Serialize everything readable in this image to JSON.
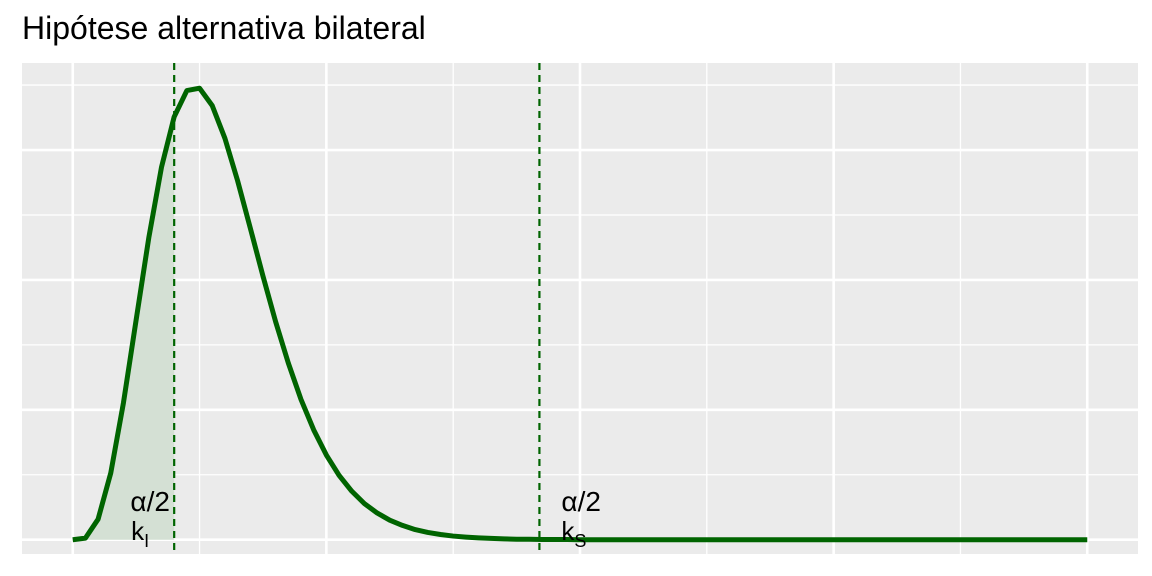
{
  "chart_data": {
    "type": "area",
    "title": "Hipótese alternativa bilateral",
    "xlabel": "",
    "ylabel": "",
    "distribution_note": "chi-square density",
    "x": [
      0,
      0.25,
      0.5,
      0.75,
      1,
      1.25,
      1.5,
      1.75,
      2,
      2.25,
      2.5,
      2.75,
      3,
      3.25,
      3.5,
      3.75,
      4,
      4.25,
      4.5,
      4.75,
      5,
      5.25,
      5.5,
      5.75,
      6,
      6.25,
      6.5,
      6.75,
      7,
      7.25,
      7.5,
      7.75,
      8,
      8.25,
      8.5,
      8.75,
      9,
      9.25,
      9.5,
      9.75,
      10,
      10.5,
      11,
      11.5,
      12,
      12.5,
      13,
      13.5,
      14,
      14.5,
      15,
      15.5,
      16,
      16.5,
      17,
      17.5,
      18,
      18.5,
      19,
      19.5,
      20
    ],
    "series": [
      {
        "values": [
          0,
          0.0006,
          0.0079,
          0.0257,
          0.0527,
          0.0846,
          0.1163,
          0.1434,
          0.1628,
          0.1729,
          0.1738,
          0.1671,
          0.1545,
          0.1382,
          0.12,
          0.1015,
          0.0839,
          0.068,
          0.054,
          0.0423,
          0.0326,
          0.0248,
          0.0187,
          0.0139,
          0.0103,
          0.0075,
          0.0055,
          0.0039,
          0.0028,
          0.002,
          0.0014,
          0.001,
          0.0007,
          0.0005,
          0.0003,
          0.0002,
          0.0002,
          0.0001,
          0.0001,
          0.0001,
          0,
          0,
          0,
          0,
          0,
          0,
          0,
          0,
          0,
          0,
          0,
          0,
          0,
          0,
          0,
          0,
          0,
          0,
          0,
          0,
          0
        ]
      }
    ],
    "xlim": [
      -1,
      21
    ],
    "ylim": [
      -0.0055,
      0.1835
    ],
    "x_breaks_major": [
      0,
      5,
      10,
      15,
      20
    ],
    "x_breaks_minor": [
      2.5,
      7.5,
      12.5,
      17.5
    ],
    "y_breaks_major": [
      0,
      0.05,
      0.1,
      0.15
    ],
    "y_breaks_minor": [
      0.025,
      0.075,
      0.125,
      0.175
    ],
    "tick_labels_visible": false,
    "critical_values": [
      {
        "name": "k_I",
        "x": 2.0,
        "label_main": "k",
        "label_sub": "I",
        "tail_label": "α/2"
      },
      {
        "name": "k_S",
        "x": 9.2,
        "label_main": "k",
        "label_sub": "S",
        "tail_label": "α/2"
      }
    ],
    "grid": true,
    "colors": {
      "curve": "#006400",
      "tail_fill": "#d4e0d4",
      "panel": "#ebebeb",
      "grid": "#ffffff",
      "cutoff_line": "#006400"
    }
  }
}
